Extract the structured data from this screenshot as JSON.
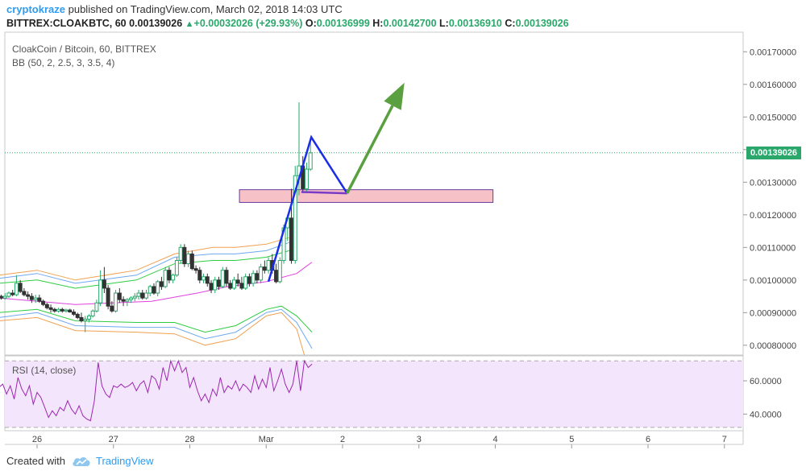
{
  "header": {
    "author": "cryptokraze",
    "published_text": "published on TradingView.com, March 02, 2018 14:03 UTC"
  },
  "ohlc": {
    "symbol": "BITTREX:CLOAKBTC, 60",
    "last": "0.00139026",
    "change": "+0.00032026 (+29.93%)",
    "o_label": "O:",
    "o_value": "0.00136999",
    "h_label": "H:",
    "h_value": "0.00142700",
    "l_label": "L:",
    "l_value": "0.00136910",
    "c_label": "C:",
    "c_value": "0.00139026"
  },
  "legend": {
    "title": "CloakCoin / Bitcoin, 60, BITTREX",
    "bb": "BB (50, 2, 2.5, 3, 3.5, 4)",
    "rsi": "RSI (14, close)"
  },
  "footer": {
    "created_with": "Created with",
    "brand": "TradingView"
  },
  "current_price_label": "0.00139026",
  "colors": {
    "candle_up": "#2aa86b",
    "candle_down": "#333333",
    "basis": "#e040e0",
    "band1": "#2ecc40",
    "band2": "#6fa8f0",
    "band3": "#f0a050",
    "zone_fill": "#f4b6bd",
    "zone_stroke": "#6a3aa0",
    "pattern": "#1a2ee8",
    "pattern_close": "#7a3ac8",
    "projection": "#5aa040",
    "rsi_line": "#9c27b0",
    "rsi_bg": "#f3e5fb"
  },
  "chart_data": [
    {
      "type": "candlestick",
      "title": "CloakCoin / Bitcoin, 60, BITTREX",
      "x_ticks": [
        "26",
        "27",
        "28",
        "Mar",
        "2",
        "3",
        "4",
        "5",
        "6",
        "7"
      ],
      "y_ticks": [
        "0.00080000",
        "0.00090000",
        "0.00100000",
        "0.00110000",
        "0.00120000",
        "0.00130000",
        "0.00140000",
        "0.00150000",
        "0.00160000",
        "0.00170000"
      ],
      "ylim": [
        0.00077,
        0.00176
      ],
      "x_day_range": [
        25.5,
        32.2
      ],
      "current_price": 0.00139026,
      "candles": [
        [
          25.53,
          0.00095,
          0.000955,
          0.00094,
          0.000945
        ],
        [
          25.58,
          0.000945,
          0.00096,
          0.00094,
          0.00095
        ],
        [
          25.63,
          0.00095,
          0.000965,
          0.000945,
          0.00096
        ],
        [
          25.68,
          0.00096,
          0.00097,
          0.00095,
          0.000955
        ],
        [
          25.73,
          0.000955,
          0.001015,
          0.00095,
          0.00099
        ],
        [
          25.78,
          0.00099,
          0.001,
          0.00096,
          0.000965
        ],
        [
          25.83,
          0.000965,
          0.000975,
          0.00095,
          0.000955
        ],
        [
          25.88,
          0.000955,
          0.000965,
          0.00094,
          0.00095
        ],
        [
          25.93,
          0.00095,
          0.00096,
          0.00093,
          0.00094
        ],
        [
          25.98,
          0.00094,
          0.000955,
          0.00093,
          0.000945
        ],
        [
          26.03,
          0.000945,
          0.000955,
          0.00093,
          0.000935
        ],
        [
          26.08,
          0.000935,
          0.00094,
          0.00092,
          0.000925
        ],
        [
          26.13,
          0.000925,
          0.00093,
          0.00091,
          0.000915
        ],
        [
          26.18,
          0.000915,
          0.000925,
          0.0009,
          0.00091
        ],
        [
          26.23,
          0.00091,
          0.000915,
          0.0009,
          0.000905
        ],
        [
          26.28,
          0.000905,
          0.000915,
          0.0009,
          0.00091
        ],
        [
          26.33,
          0.00091,
          0.000915,
          0.0009,
          0.000905
        ],
        [
          26.38,
          0.000905,
          0.000912,
          0.0009,
          0.000908
        ],
        [
          26.43,
          0.000908,
          0.000912,
          0.0009,
          0.000902
        ],
        [
          26.48,
          0.000902,
          0.00091,
          0.00089,
          0.000895
        ],
        [
          26.53,
          0.000895,
          0.0009,
          0.00088,
          0.000885
        ],
        [
          26.58,
          0.000885,
          0.0009,
          0.00087,
          0.000875
        ],
        [
          26.63,
          0.000875,
          0.00089,
          0.00084,
          0.00088
        ],
        [
          26.68,
          0.00088,
          0.000895,
          0.00087,
          0.00089
        ],
        [
          26.73,
          0.00089,
          0.00091,
          0.000885,
          0.000905
        ],
        [
          26.78,
          0.000905,
          0.00094,
          0.0009,
          0.00093
        ],
        [
          26.83,
          0.00093,
          0.00103,
          0.00092,
          0.001
        ],
        [
          26.88,
          0.001,
          0.00104,
          0.00096,
          0.000975
        ],
        [
          26.93,
          0.000975,
          0.000985,
          0.00091,
          0.00092
        ],
        [
          26.98,
          0.00092,
          0.000935,
          0.0009,
          0.000905
        ],
        [
          27.03,
          0.000905,
          0.00097,
          0.0009,
          0.00096
        ],
        [
          27.08,
          0.00096,
          0.000975,
          0.00093,
          0.00094
        ],
        [
          27.13,
          0.00094,
          0.00095,
          0.00092,
          0.000935
        ],
        [
          27.18,
          0.000935,
          0.000945,
          0.00092,
          0.00094
        ],
        [
          27.23,
          0.00094,
          0.00095,
          0.00093,
          0.000945
        ],
        [
          27.28,
          0.000945,
          0.00096,
          0.000935,
          0.00095
        ],
        [
          27.33,
          0.00095,
          0.00097,
          0.00094,
          0.00096
        ],
        [
          27.38,
          0.00096,
          0.00097,
          0.00094,
          0.000945
        ],
        [
          27.43,
          0.000945,
          0.00097,
          0.00094,
          0.00096
        ],
        [
          27.48,
          0.00096,
          0.000985,
          0.00095,
          0.00098
        ],
        [
          27.53,
          0.00098,
          0.00099,
          0.000955,
          0.00096
        ],
        [
          27.58,
          0.00096,
          0.001,
          0.00095,
          0.000995
        ],
        [
          27.63,
          0.000995,
          0.00101,
          0.00097,
          0.00098
        ],
        [
          27.68,
          0.00098,
          0.00104,
          0.000975,
          0.00103
        ],
        [
          27.73,
          0.00103,
          0.00104,
          0.00099,
          0.001
        ],
        [
          27.78,
          0.001,
          0.00102,
          0.00099,
          0.001015
        ],
        [
          27.83,
          0.001015,
          0.00107,
          0.00101,
          0.00106
        ],
        [
          27.88,
          0.00106,
          0.00111,
          0.00105,
          0.0011
        ],
        [
          27.93,
          0.0011,
          0.00111,
          0.00104,
          0.00105
        ],
        [
          27.98,
          0.00105,
          0.00109,
          0.00104,
          0.00108
        ],
        [
          28.03,
          0.00108,
          0.00109,
          0.00103,
          0.001035
        ],
        [
          28.08,
          0.001035,
          0.001045,
          0.00102,
          0.00103
        ],
        [
          28.13,
          0.00103,
          0.00104,
          0.00099,
          0.001
        ],
        [
          28.18,
          0.001,
          0.00102,
          0.00099,
          0.00101
        ],
        [
          28.23,
          0.00101,
          0.00102,
          0.00098,
          0.00099
        ],
        [
          28.28,
          0.00099,
          0.001,
          0.00096,
          0.00097
        ],
        [
          28.33,
          0.00097,
          0.00101,
          0.00096,
          0.001
        ],
        [
          28.38,
          0.001,
          0.00101,
          0.00097,
          0.00098
        ],
        [
          28.43,
          0.00098,
          0.00104,
          0.000975,
          0.00103
        ],
        [
          28.48,
          0.00103,
          0.00104,
          0.00098,
          0.00099
        ],
        [
          28.53,
          0.00099,
          0.001,
          0.00097,
          0.000975
        ],
        [
          28.58,
          0.000975,
          0.00101,
          0.00097,
          0.001
        ],
        [
          28.63,
          0.001,
          0.00102,
          0.00098,
          0.00099
        ],
        [
          28.68,
          0.00099,
          0.00101,
          0.00097,
          0.000975
        ],
        [
          28.73,
          0.000975,
          0.00102,
          0.00097,
          0.00101
        ],
        [
          28.78,
          0.00101,
          0.00102,
          0.00098,
          0.00099
        ],
        [
          28.83,
          0.00099,
          0.00103,
          0.00098,
          0.00102
        ],
        [
          28.88,
          0.00102,
          0.00103,
          0.00099,
          0.001
        ],
        [
          28.93,
          0.001,
          0.00105,
          0.00099,
          0.00104
        ],
        [
          28.98,
          0.00104,
          0.00106,
          0.00102,
          0.00103
        ],
        [
          29.03,
          0.00103,
          0.00107,
          0.00102,
          0.00106
        ],
        [
          29.08,
          0.00106,
          0.00108,
          0.00102,
          0.00103
        ],
        [
          29.13,
          0.00103,
          0.00105,
          0.00099,
          0.000995
        ],
        [
          29.18,
          0.000995,
          0.00107,
          0.00099,
          0.00106
        ],
        [
          29.23,
          0.00106,
          0.00117,
          0.00105,
          0.00116
        ],
        [
          29.28,
          0.00116,
          0.0012,
          0.00112,
          0.00119
        ],
        [
          29.33,
          0.00119,
          0.00128,
          0.00105,
          0.00106
        ],
        [
          29.38,
          0.00106,
          0.00135,
          0.00105,
          0.00132
        ],
        [
          29.43,
          0.00132,
          0.001545,
          0.00126,
          0.00135
        ],
        [
          29.48,
          0.00135,
          0.00138,
          0.00127,
          0.00128
        ],
        [
          29.53,
          0.00128,
          0.00136,
          0.00127,
          0.00134
        ],
        [
          29.58,
          0.00134,
          0.001427,
          0.001335,
          0.00139
        ]
      ],
      "bollinger": {
        "basis": [
          [
            25.5,
            0.000945
          ],
          [
            26.5,
            0.000925
          ],
          [
            27.5,
            0.000935
          ],
          [
            28.1,
            0.00096
          ],
          [
            28.5,
            0.00098
          ],
          [
            29.0,
            0.000995
          ],
          [
            29.4,
            0.00102
          ],
          [
            29.6,
            0.001055
          ]
        ],
        "band1_upper": [
          [
            25.5,
            0.00099
          ],
          [
            26.0,
            0.001
          ],
          [
            26.5,
            0.000975
          ],
          [
            27.3,
            0.001
          ],
          [
            27.8,
            0.00105
          ],
          [
            28.3,
            0.00106
          ],
          [
            28.6,
            0.00106
          ],
          [
            29.0,
            0.00107
          ],
          [
            29.3,
            0.00109
          ]
        ],
        "band1_lower": [
          [
            25.5,
            0.0009
          ],
          [
            26.0,
            0.00091
          ],
          [
            26.5,
            0.000875
          ],
          [
            27.3,
            0.00087
          ],
          [
            27.8,
            0.00087
          ],
          [
            28.2,
            0.00084
          ],
          [
            28.6,
            0.00086
          ],
          [
            29.0,
            0.00091
          ],
          [
            29.2,
            0.00092
          ],
          [
            29.4,
            0.00089
          ],
          [
            29.6,
            0.00084
          ]
        ],
        "band2_upper": [
          [
            25.5,
            0.001005
          ],
          [
            26.0,
            0.00102
          ],
          [
            26.5,
            0.00099
          ],
          [
            27.3,
            0.001015
          ],
          [
            27.8,
            0.00107
          ],
          [
            28.3,
            0.00108
          ],
          [
            28.6,
            0.00108
          ],
          [
            29.0,
            0.00109
          ],
          [
            29.3,
            0.001115
          ]
        ],
        "band2_lower": [
          [
            25.5,
            0.000885
          ],
          [
            26.0,
            0.0009
          ],
          [
            26.5,
            0.00086
          ],
          [
            27.3,
            0.000855
          ],
          [
            27.8,
            0.000855
          ],
          [
            28.2,
            0.00082
          ],
          [
            28.6,
            0.00084
          ],
          [
            29.0,
            0.0009
          ],
          [
            29.2,
            0.00091
          ],
          [
            29.4,
            0.00087
          ],
          [
            29.6,
            0.00079
          ]
        ],
        "band3_upper": [
          [
            25.5,
            0.001015
          ],
          [
            26.0,
            0.00103
          ],
          [
            26.5,
            0.001
          ],
          [
            27.3,
            0.00103
          ],
          [
            27.8,
            0.00108
          ],
          [
            28.3,
            0.0011
          ],
          [
            28.6,
            0.0011
          ],
          [
            29.0,
            0.00111
          ],
          [
            29.3,
            0.00113
          ]
        ],
        "band3_lower": [
          [
            25.5,
            0.000875
          ],
          [
            26.0,
            0.000885
          ],
          [
            26.5,
            0.000845
          ],
          [
            27.3,
            0.00084
          ],
          [
            27.8,
            0.000835
          ],
          [
            28.2,
            0.0008
          ],
          [
            28.6,
            0.00082
          ],
          [
            29.0,
            0.00089
          ],
          [
            29.2,
            0.0009
          ],
          [
            29.4,
            0.00085
          ],
          [
            29.5,
            0.00077
          ]
        ]
      },
      "support_zone": {
        "x_range": [
          28.65,
          31.97
        ],
        "y_range": [
          0.001238,
          0.001277
        ]
      },
      "pattern_lines": [
        [
          29.03,
          0.000995
        ],
        [
          29.59,
          0.001438
        ],
        [
          30.06,
          0.001266
        ],
        [
          29.46,
          0.00127
        ]
      ],
      "projection_arrow": [
        [
          30.06,
          0.001266
        ],
        [
          30.81,
          0.001605
        ]
      ]
    },
    {
      "type": "line",
      "title": "RSI (14, close)",
      "y_ticks": [
        "40.0000",
        "60.0000"
      ],
      "ylim": [
        30,
        75
      ],
      "band_range": [
        30,
        70
      ],
      "x_day_range": [
        25.5,
        32.2
      ],
      "series": [
        {
          "x": [
            25.5,
            25.55,
            25.6,
            25.65,
            25.7,
            25.75,
            25.8,
            25.85,
            25.9,
            25.95,
            26.0,
            26.05,
            26.1,
            26.15,
            26.2,
            26.25,
            26.3,
            26.35,
            26.4,
            26.45,
            26.5,
            26.55,
            26.6,
            26.65,
            26.7,
            26.75,
            26.8,
            26.85,
            26.9,
            26.95,
            27.0,
            27.05,
            27.1,
            27.15,
            27.2,
            27.25,
            27.3,
            27.35,
            27.4,
            27.45,
            27.5,
            27.55,
            27.6,
            27.65,
            27.7,
            27.75,
            27.8,
            27.85,
            27.9,
            27.95,
            28.0,
            28.05,
            28.1,
            28.15,
            28.2,
            28.25,
            28.3,
            28.35,
            28.4,
            28.45,
            28.5,
            28.55,
            28.6,
            28.65,
            28.7,
            28.75,
            28.8,
            28.85,
            28.9,
            28.95,
            29.0,
            29.05,
            29.1,
            29.15,
            29.2,
            29.25,
            29.3,
            29.35,
            29.4,
            29.45,
            29.5,
            29.55,
            29.6
          ],
          "values": [
            56,
            58,
            52,
            57,
            49,
            62,
            55,
            51,
            57,
            46,
            53,
            50,
            44,
            38,
            42,
            39,
            44,
            42,
            48,
            43,
            40,
            45,
            39,
            37,
            36,
            48,
            71,
            57,
            52,
            50,
            57,
            56,
            58,
            56,
            57,
            59,
            54,
            58,
            60,
            53,
            63,
            61,
            55,
            68,
            60,
            72,
            66,
            72,
            65,
            68,
            56,
            62,
            54,
            48,
            52,
            47,
            55,
            51,
            62,
            53,
            57,
            55,
            60,
            54,
            58,
            56,
            53,
            63,
            55,
            61,
            56,
            68,
            54,
            60,
            67,
            58,
            53,
            58,
            72,
            54,
            72,
            68,
            70
          ]
        }
      ]
    }
  ]
}
